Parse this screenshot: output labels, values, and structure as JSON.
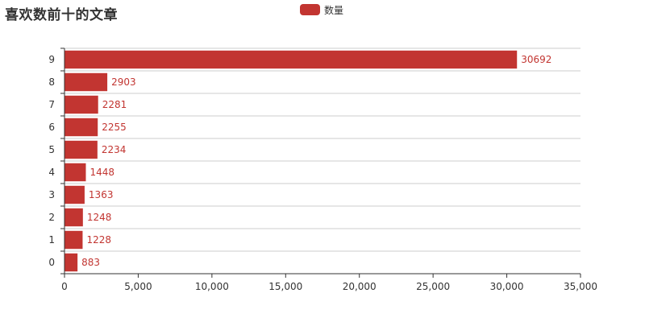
{
  "colors": {
    "bar": "#c23531",
    "text": "#333333",
    "grid": "#cccccc",
    "axis": "#333333"
  },
  "chart_data": {
    "type": "bar",
    "orientation": "horizontal",
    "title": "喜欢数前十的文章",
    "xlabel": "",
    "ylabel": "",
    "categories": [
      "0",
      "1",
      "2",
      "3",
      "4",
      "5",
      "6",
      "7",
      "8",
      "9"
    ],
    "series": [
      {
        "name": "数量",
        "values": [
          883,
          1228,
          1248,
          1363,
          1448,
          2234,
          2255,
          2281,
          2903,
          30692
        ]
      }
    ],
    "xlim": [
      0,
      35000
    ],
    "xticks": [
      "0",
      "5,000",
      "10,000",
      "15,000",
      "20,000",
      "25,000",
      "30,000",
      "35,000"
    ],
    "grid": true,
    "legend_position": "top-center",
    "data_labels": true
  }
}
